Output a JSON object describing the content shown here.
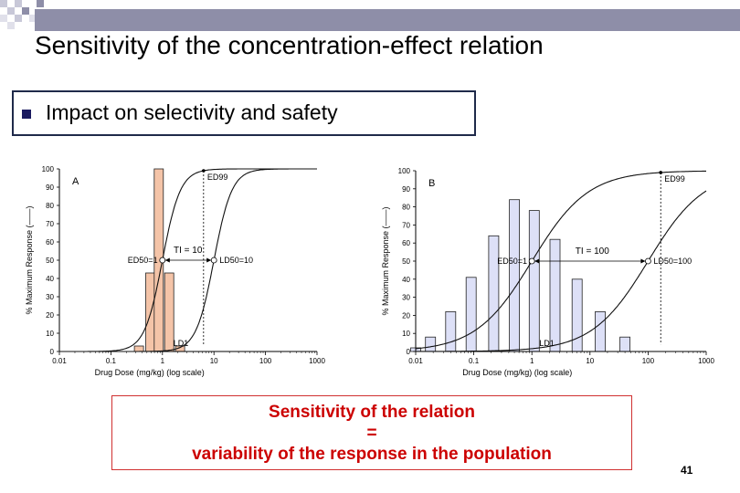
{
  "slide": {
    "title": "Sensitivity of the concentration-effect relation",
    "bullet": "Impact on selectivity and safety",
    "bullet_color": "#1a1a60",
    "header_bar_color": "#8e8ea8",
    "page_number": "41"
  },
  "sensitivity_box": {
    "line1": "Sensitivity of the relation",
    "line2": "=",
    "line3": "variability of the response in the population",
    "color": "#cc0000"
  },
  "chart_data": [
    {
      "type": "bar",
      "panel": "A",
      "title": "",
      "xlabel": "Drug Dose (mg/kg)  (log scale)",
      "ylabel": "% Maximum Response (——)",
      "x_scale": "log",
      "xlim": [
        0.01,
        1000
      ],
      "ylim": [
        0,
        100
      ],
      "x_ticks": [
        "0.01",
        "0.1",
        "1",
        "10",
        "100",
        "1000"
      ],
      "y_ticks": [
        "0",
        "10",
        "20",
        "30",
        "40",
        "50",
        "60",
        "70",
        "80",
        "90",
        "100"
      ],
      "bar_color": "#f4c4a8",
      "bars": [
        {
          "dose": 0.35,
          "value": 3
        },
        {
          "dose": 0.58,
          "value": 43
        },
        {
          "dose": 0.85,
          "value": 100
        },
        {
          "dose": 1.35,
          "value": 43
        },
        {
          "dose": 2.2,
          "value": 3
        }
      ],
      "series": [
        {
          "name": "ED",
          "ed50": 1,
          "hill": 2.5
        },
        {
          "name": "LD",
          "ed50": 10,
          "hill": 2.5
        }
      ],
      "annotations": {
        "ed50": "ED50=1",
        "ld50": "LD50=10",
        "ti": "TI = 10",
        "ed99": "ED99",
        "ld1": "LD1"
      }
    },
    {
      "type": "bar",
      "panel": "B",
      "title": "",
      "xlabel": "Drug Dose (mg/kg)  (log scale)",
      "ylabel": "% Maximum Response (——)",
      "x_scale": "log",
      "xlim": [
        0.01,
        1000
      ],
      "ylim": [
        0,
        100
      ],
      "x_ticks": [
        "0.01",
        "0.1",
        "1",
        "10",
        "100",
        "1000"
      ],
      "y_ticks": [
        "0",
        "10",
        "20",
        "30",
        "40",
        "50",
        "60",
        "70",
        "80",
        "90",
        "100"
      ],
      "bar_color": "#dde0f7",
      "bars": [
        {
          "dose": 0.01,
          "value": 2
        },
        {
          "dose": 0.018,
          "value": 8
        },
        {
          "dose": 0.04,
          "value": 22
        },
        {
          "dose": 0.09,
          "value": 41
        },
        {
          "dose": 0.22,
          "value": 64
        },
        {
          "dose": 0.5,
          "value": 84
        },
        {
          "dose": 1.1,
          "value": 78
        },
        {
          "dose": 2.5,
          "value": 62
        },
        {
          "dose": 6,
          "value": 40
        },
        {
          "dose": 15,
          "value": 22
        },
        {
          "dose": 40,
          "value": 8
        }
      ],
      "series": [
        {
          "name": "ED",
          "ed50": 1,
          "hill": 0.9
        },
        {
          "name": "LD",
          "ed50": 100,
          "hill": 0.9
        }
      ],
      "annotations": {
        "ed50": "ED50=1",
        "ld50": "LD50=100",
        "ti": "TI = 100",
        "ed99": "ED99",
        "ld1": "LD1"
      }
    }
  ]
}
